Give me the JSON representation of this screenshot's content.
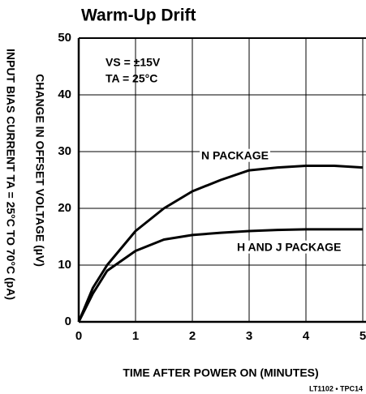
{
  "chart_data": {
    "type": "line",
    "title": "Warm-Up Drift",
    "x_label": "TIME AFTER POWER ON (MINUTES)",
    "y_labels": [
      "INPUT BIAS CURRENT TA = 25°C TO 70°C (pA)",
      "CHANGE IN OFFSET VOLTAGE (µV)"
    ],
    "annotations": [
      "VS = ±15V",
      "TA = 25°C"
    ],
    "footnote": "LT1102 • TPC14",
    "x": [
      0,
      0.25,
      0.5,
      1,
      1.5,
      2,
      2.5,
      3,
      3.5,
      4,
      4.5,
      5
    ],
    "series": [
      {
        "name": "N PACKAGE",
        "color": "#000000",
        "values": [
          0,
          6,
          10,
          16,
          20,
          23,
          25,
          26.7,
          27.2,
          27.5,
          27.5,
          27.2
        ]
      },
      {
        "name": "H AND J PACKAGE",
        "color": "#000000",
        "values": [
          0,
          5,
          9,
          12.5,
          14.5,
          15.3,
          15.7,
          16,
          16.2,
          16.3,
          16.3,
          16.3
        ]
      }
    ],
    "xlim": [
      0,
      5
    ],
    "xticks": [
      0,
      1,
      2,
      3,
      4,
      5
    ],
    "ylim": [
      0,
      50
    ],
    "yticks": [
      0,
      10,
      20,
      30,
      40,
      50
    ],
    "grid": true
  }
}
